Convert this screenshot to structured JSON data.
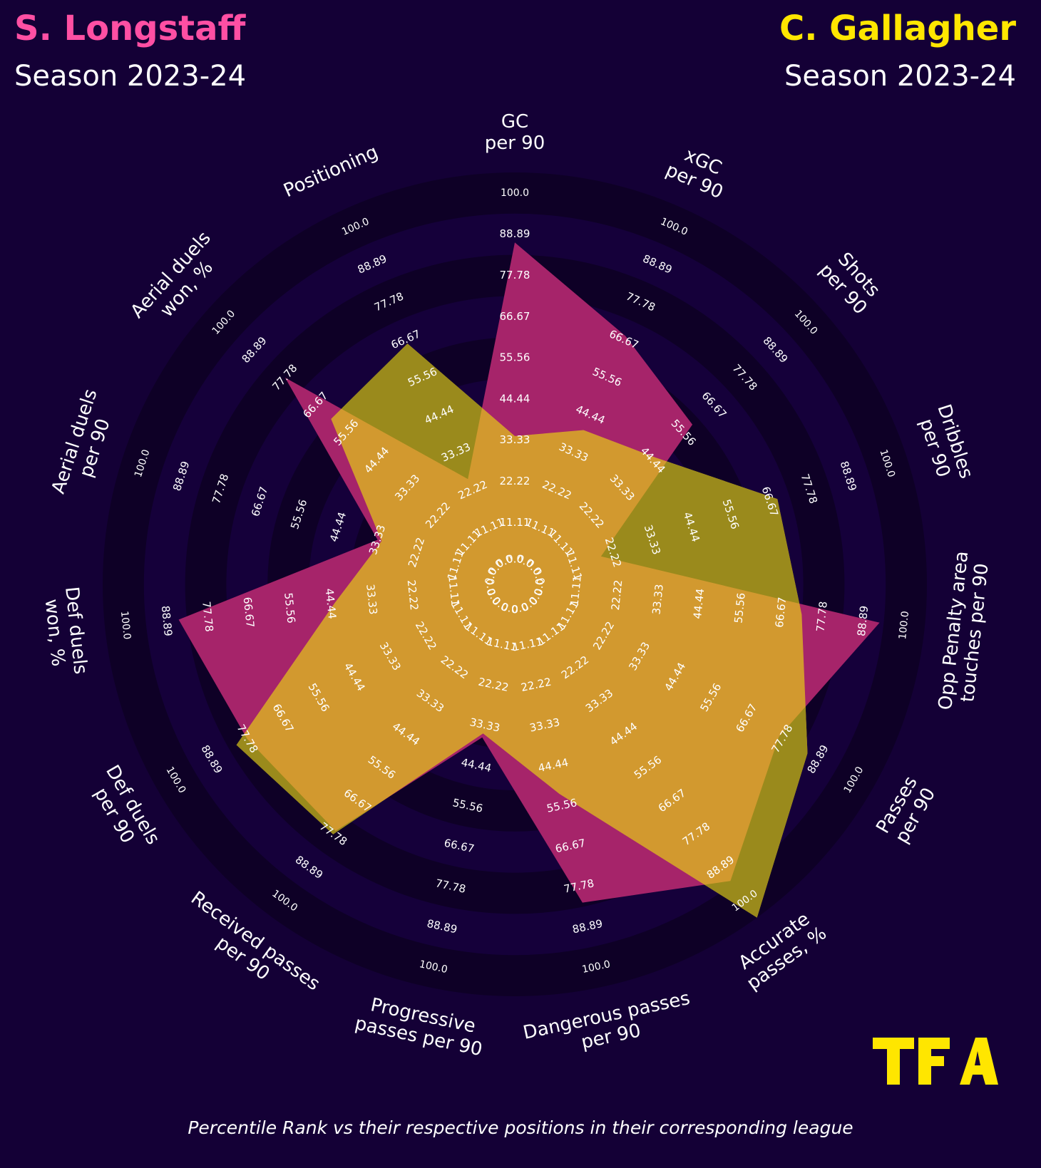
{
  "header": {
    "left_player": "S. Longstaff",
    "left_season": "Season 2023-24",
    "right_player": "C. Gallagher",
    "right_season": "Season 2023-24"
  },
  "colors": {
    "background": "#140036",
    "left_player": "#ff4fa3",
    "right_player": "#ffe600",
    "left_fill": "#a6246a",
    "right_fill": "#d49d2d",
    "overlap_fill": "#9a8a1c",
    "ring_dark": "#0e0026",
    "ring_light": "#15003a"
  },
  "logo": {
    "text": "TFA"
  },
  "footnote": "Percentile Rank vs their respective positions in their corresponding league",
  "chart_data": {
    "type": "radar",
    "scale": [
      0,
      100
    ],
    "ring_values": [
      "0.0",
      "11.11",
      "22.22",
      "33.33",
      "44.44",
      "55.56",
      "66.67",
      "77.78",
      "88.89",
      "100.0"
    ],
    "metrics": [
      {
        "label": [
          "GC",
          "per 90"
        ]
      },
      {
        "label": [
          "xGC",
          "per 90"
        ]
      },
      {
        "label": [
          "Shots",
          "per 90"
        ]
      },
      {
        "label": [
          "Dribbles",
          "per 90"
        ]
      },
      {
        "label": [
          "Opp Penalty area",
          "touches per 90"
        ]
      },
      {
        "label": [
          "Passes",
          "per 90"
        ]
      },
      {
        "label": [
          "Accurate",
          "passes, %"
        ]
      },
      {
        "label": [
          "Dangerous passes",
          "per 90"
        ]
      },
      {
        "label": [
          "Progressive",
          "passes per 90"
        ]
      },
      {
        "label": [
          "Received passes",
          "per 90"
        ]
      },
      {
        "label": [
          "Def duels",
          "per 90"
        ]
      },
      {
        "label": [
          "Def duels",
          "won, %"
        ]
      },
      {
        "label": [
          "Aerial duels",
          "per 90"
        ]
      },
      {
        "label": [
          "Aerial duels",
          "won, %"
        ]
      },
      {
        "label": [
          "Positioning"
        ]
      }
    ],
    "series": [
      {
        "name": "S. Longstaff",
        "values": [
          83,
          66,
          58,
          22,
          89,
          74,
          89,
          79,
          38,
          74,
          75,
          82,
          35,
          75,
          28
        ]
      },
      {
        "name": "C. Gallagher",
        "values": [
          36,
          41,
          46,
          67,
          70,
          82,
          100,
          52,
          37,
          75,
          78,
          44,
          34,
          60,
          64
        ]
      }
    ]
  }
}
